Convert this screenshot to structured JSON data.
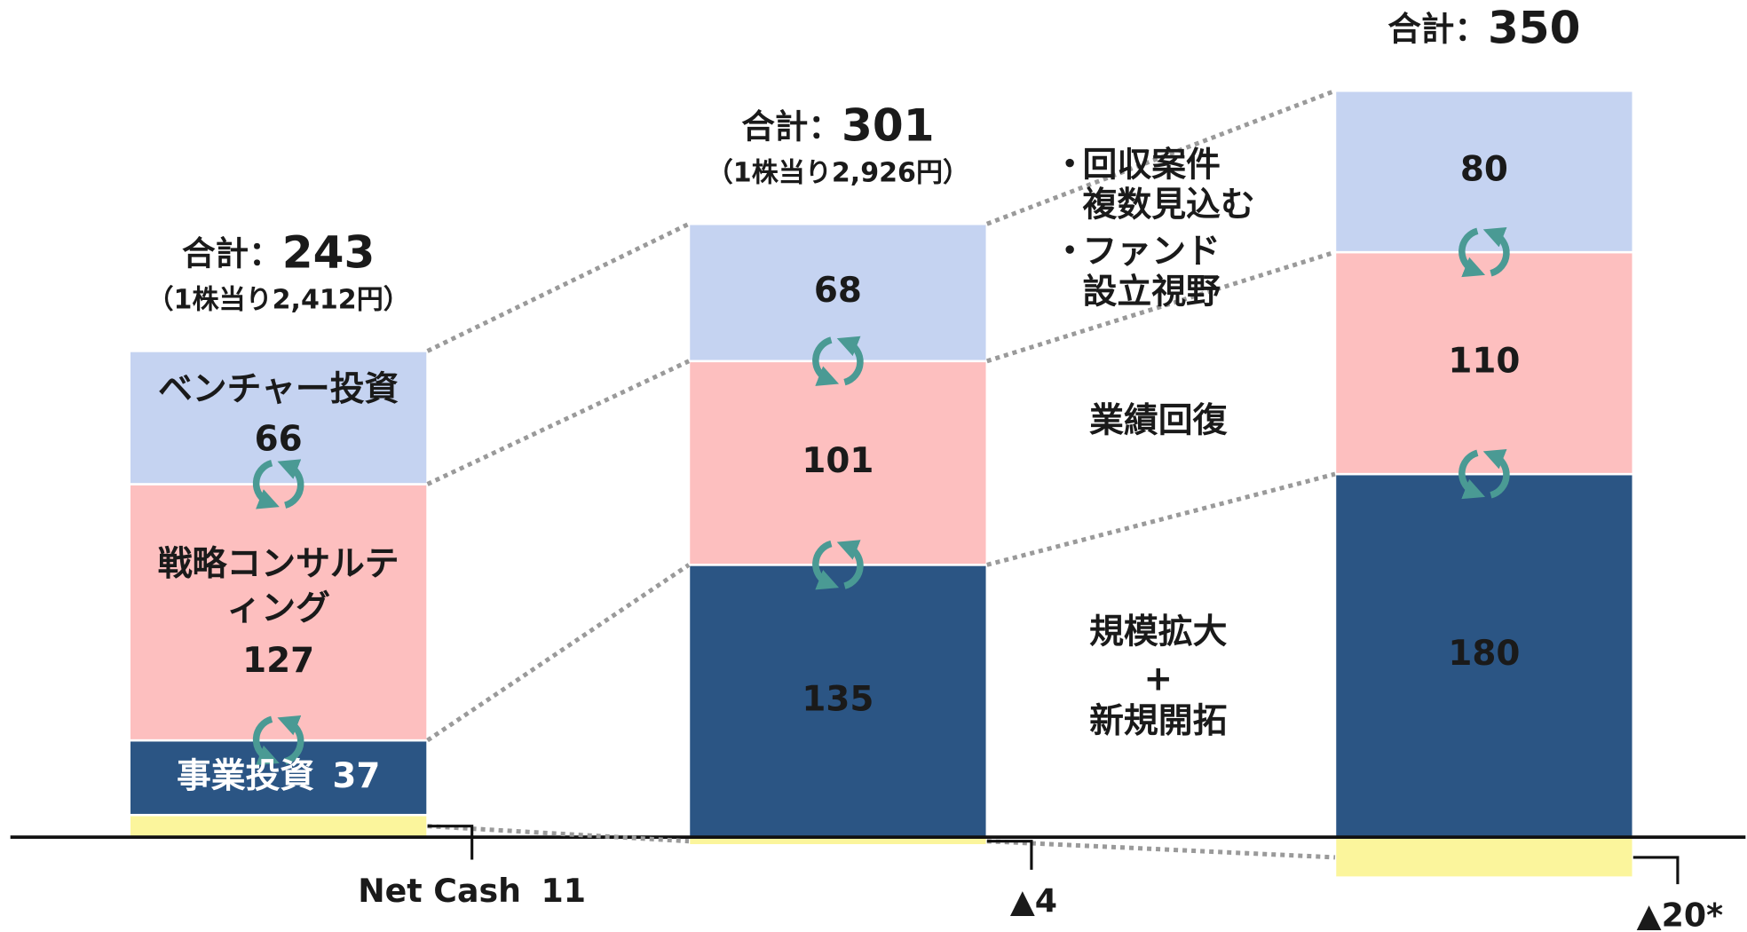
{
  "chart_data": {
    "type": "stacked_bar",
    "categories": [
      null,
      null,
      null
    ],
    "ylim": [
      -47,
      415
    ],
    "series": [
      {
        "name": "Net Cash",
        "color": "#fbf59c",
        "values": [
          11,
          -4,
          -20
        ],
        "value_labels": [
          "11",
          "▲4",
          "▲20*"
        ]
      },
      {
        "name": "事業投資",
        "color": "#2b5584",
        "values": [
          37,
          135,
          180
        ]
      },
      {
        "name": "戦略コンサルティング",
        "color": "#fdbfbf",
        "values": [
          127,
          101,
          110
        ]
      },
      {
        "name": "ベンチャー投資",
        "color": "#c5d3f1",
        "values": [
          66,
          68,
          80
        ]
      }
    ],
    "total_prefix": "合計：",
    "totals": [
      243,
      301,
      350
    ],
    "per_share": [
      "（1株当り2,412円）",
      "（1株当り2,926円）"
    ],
    "annotations": [
      "・",
      "回収案件",
      "複数見込む",
      "・",
      "ファンド",
      "設立視野",
      "業績回復",
      "規模拡大",
      "+",
      "新規開拓"
    ]
  }
}
